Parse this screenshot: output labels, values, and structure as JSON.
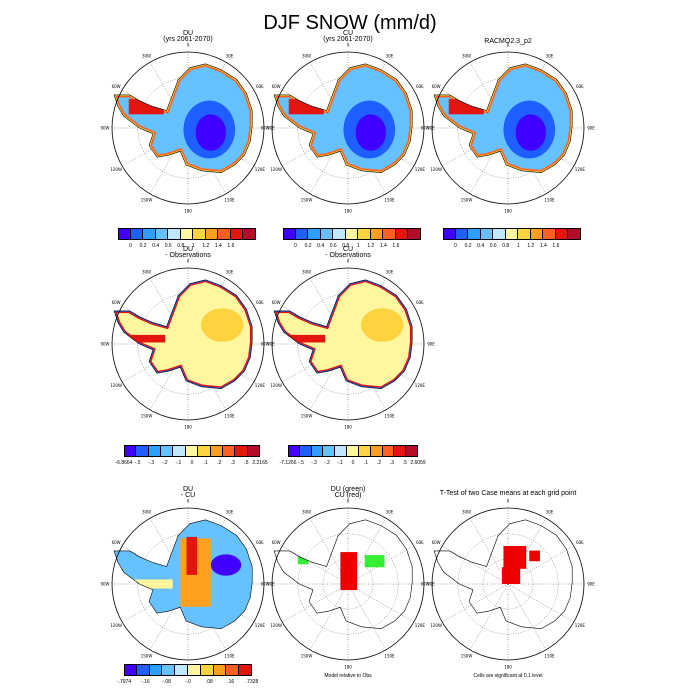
{
  "title": "DJF SNOW (mm/d)",
  "chart_data": {
    "type": "heatmap",
    "title": "DJF SNOW (mm/d)",
    "projection": "south polar stereographic",
    "longitude_labels": [
      "0",
      "30E",
      "60E",
      "90E",
      "120E",
      "150E",
      "180",
      "150W",
      "120W",
      "90W",
      "60W",
      "30W"
    ],
    "panels": [
      {
        "id": "du",
        "title_lines": [
          "DU",
          "(yrs 2061-2070)"
        ],
        "colorbar": "abs"
      },
      {
        "id": "cu",
        "title_lines": [
          "CU",
          "(yrs 2061-2070)"
        ],
        "colorbar": "abs"
      },
      {
        "id": "racmo",
        "title_lines": [
          "RACMO2.3_p2"
        ],
        "colorbar": "abs"
      },
      {
        "id": "du_obs",
        "title_lines": [
          "DU",
          "- Observations"
        ],
        "colorbar": "du_obs"
      },
      {
        "id": "cu_obs",
        "title_lines": [
          "CU",
          "- Observations"
        ],
        "colorbar": "cu_obs"
      },
      {
        "id": "du_cu",
        "title_lines": [
          "DU",
          "- CU"
        ],
        "colorbar": "du_cu"
      },
      {
        "id": "rel",
        "title_lines": [
          "DU (green)",
          "CU (red)"
        ],
        "note": "Model relative to Obs"
      },
      {
        "id": "ttest",
        "title_lines": [
          "T-Test of two Case means at each grid point"
        ],
        "note": "Cells are significant at 0.1 level"
      }
    ],
    "colorbars": {
      "abs": {
        "colors": [
          "#3f00ff",
          "#1f5fff",
          "#2f9fff",
          "#66c2ff",
          "#bfe7ff",
          "#fff6a0",
          "#ffd23f",
          "#ff9f1f",
          "#ff5f1f",
          "#e3150f",
          "#b40d2a"
        ],
        "labels": [
          "0",
          "0.2",
          "0.4",
          "0.6",
          "0.8",
          "1",
          "1.2",
          "1.4",
          "1.6"
        ]
      },
      "du_obs": {
        "colors": [
          "#3f00ff",
          "#1f5fff",
          "#2f9fff",
          "#66c2ff",
          "#bfe7ff",
          "#fff6a0",
          "#ffd23f",
          "#ff9f1f",
          "#ff5f1f",
          "#e3150f",
          "#b40d2a"
        ],
        "labels": [
          "-6.8664",
          "-.5",
          "-.3",
          "-.2",
          "-.1",
          "0",
          ".1",
          ".2",
          ".3",
          ".5",
          "2.2165"
        ]
      },
      "cu_obs": {
        "colors": [
          "#3f00ff",
          "#1f5fff",
          "#2f9fff",
          "#66c2ff",
          "#bfe7ff",
          "#fff6a0",
          "#ffd23f",
          "#ff9f1f",
          "#ff5f1f",
          "#e3150f",
          "#b40d2a"
        ],
        "labels": [
          "-7.1266",
          "-.5",
          "-.3",
          "-.2",
          "-.1",
          "0",
          ".1",
          ".2",
          ".3",
          ".5",
          "2.6059"
        ]
      },
      "du_cu": {
        "colors": [
          "#3f00ff",
          "#1f5fff",
          "#2f9fff",
          "#66c2ff",
          "#bfe7ff",
          "#fff6a0",
          "#ffd23f",
          "#ff9f1f",
          "#ff5f1f",
          "#e3150f"
        ],
        "labels": [
          "-.7974",
          "-.16",
          "-.08",
          "-.0",
          ".08",
          ".16",
          ".7328"
        ]
      }
    }
  }
}
